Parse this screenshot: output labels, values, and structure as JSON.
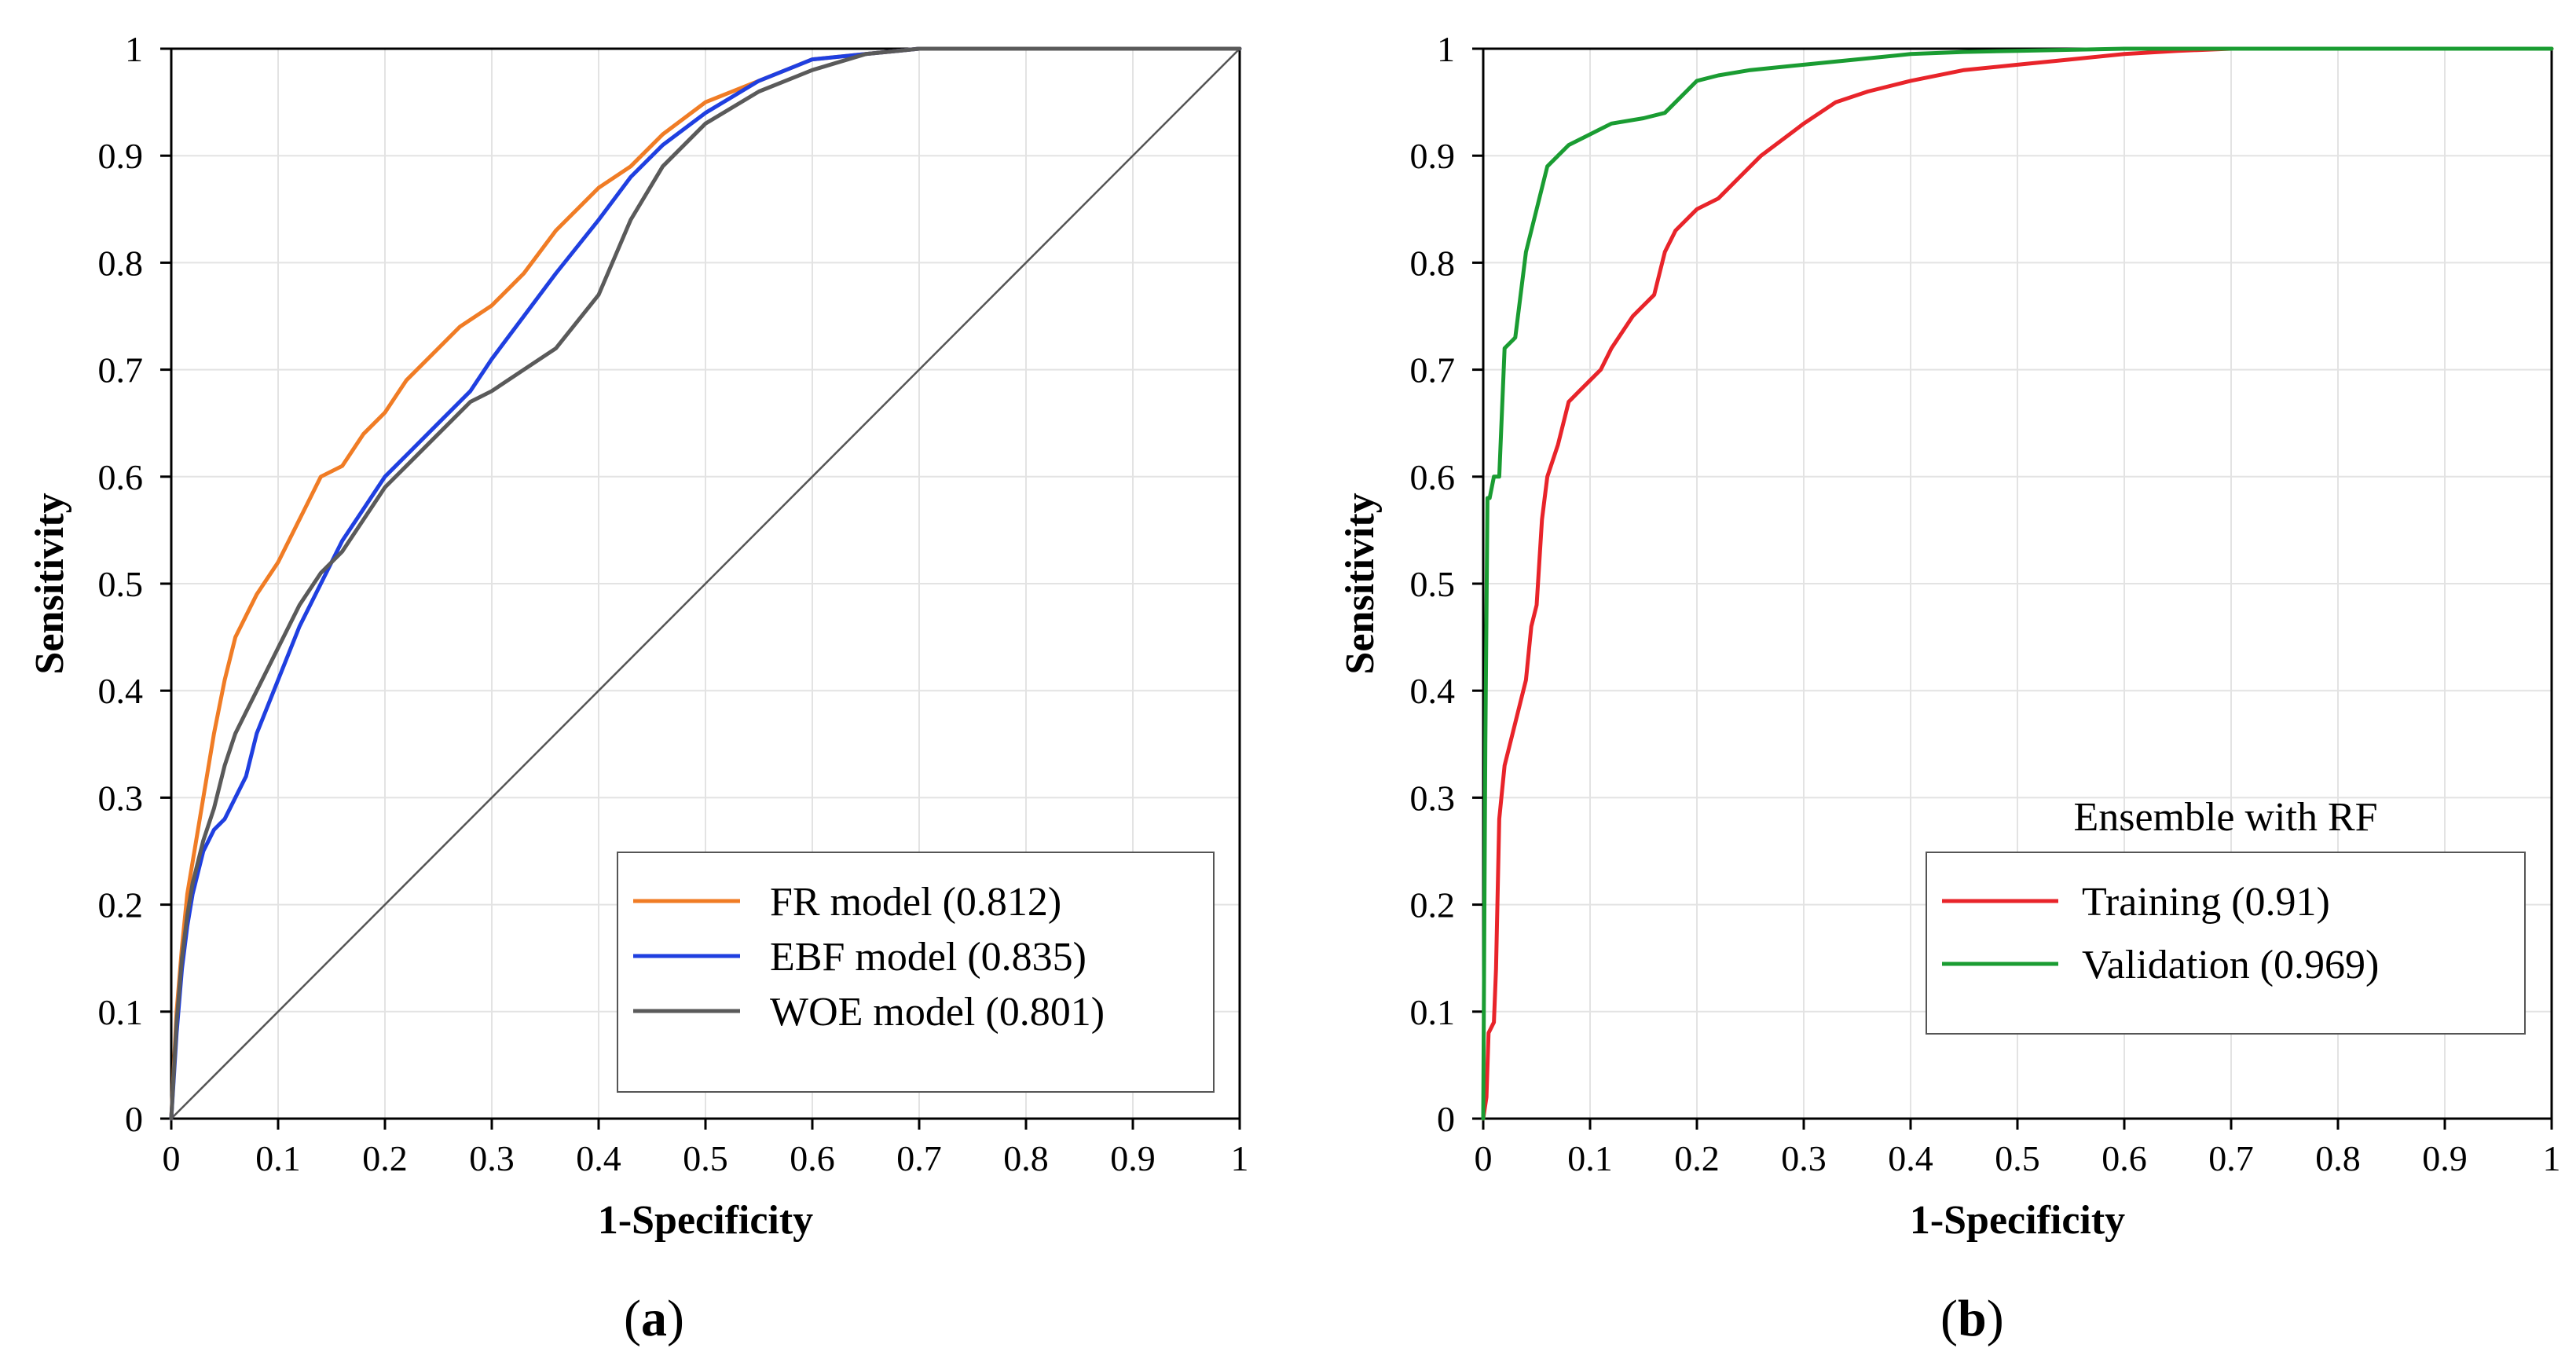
{
  "chart_data": [
    {
      "panel": "a",
      "type": "line",
      "xlabel": "1-Specificity",
      "ylabel": "Sensitivity",
      "xlim": [
        0,
        1
      ],
      "ylim": [
        0,
        1
      ],
      "ticks": [
        "0",
        "0.1",
        "0.2",
        "0.3",
        "0.4",
        "0.5",
        "0.6",
        "0.7",
        "0.8",
        "0.9",
        "1"
      ],
      "grid": true,
      "legend_position": "bottom-right",
      "diagonal": true,
      "series": [
        {
          "name": "FR model (0.812)",
          "color": "#f07c25",
          "x": [
            0,
            0.005,
            0.01,
            0.015,
            0.02,
            0.03,
            0.04,
            0.05,
            0.06,
            0.07,
            0.08,
            0.1,
            0.12,
            0.14,
            0.16,
            0.18,
            0.2,
            0.22,
            0.25,
            0.27,
            0.3,
            0.33,
            0.36,
            0.4,
            0.43,
            0.46,
            0.5,
            0.55,
            0.6,
            0.65,
            0.7,
            0.8,
            1
          ],
          "y": [
            0,
            0.1,
            0.16,
            0.21,
            0.24,
            0.3,
            0.36,
            0.41,
            0.45,
            0.47,
            0.49,
            0.52,
            0.56,
            0.6,
            0.61,
            0.64,
            0.66,
            0.69,
            0.72,
            0.74,
            0.76,
            0.79,
            0.83,
            0.87,
            0.89,
            0.92,
            0.95,
            0.97,
            0.99,
            0.995,
            1,
            1,
            1
          ]
        },
        {
          "name": "EBF model (0.835)",
          "color": "#1f3fe0",
          "x": [
            0,
            0.005,
            0.01,
            0.015,
            0.02,
            0.03,
            0.04,
            0.05,
            0.06,
            0.07,
            0.08,
            0.1,
            0.12,
            0.14,
            0.16,
            0.18,
            0.2,
            0.22,
            0.25,
            0.28,
            0.3,
            0.33,
            0.36,
            0.4,
            0.43,
            0.46,
            0.5,
            0.55,
            0.6,
            0.65,
            0.7,
            0.8,
            1
          ],
          "y": [
            0,
            0.08,
            0.14,
            0.18,
            0.21,
            0.25,
            0.27,
            0.28,
            0.3,
            0.32,
            0.36,
            0.41,
            0.46,
            0.5,
            0.54,
            0.57,
            0.6,
            0.62,
            0.65,
            0.68,
            0.71,
            0.75,
            0.79,
            0.84,
            0.88,
            0.91,
            0.94,
            0.97,
            0.99,
            0.995,
            1,
            1,
            1
          ]
        },
        {
          "name": "WOE model (0.801)",
          "color": "#5a5a5a",
          "x": [
            0,
            0.005,
            0.01,
            0.015,
            0.02,
            0.03,
            0.04,
            0.05,
            0.06,
            0.07,
            0.08,
            0.1,
            0.12,
            0.14,
            0.16,
            0.18,
            0.2,
            0.22,
            0.25,
            0.28,
            0.3,
            0.33,
            0.36,
            0.4,
            0.43,
            0.46,
            0.5,
            0.55,
            0.6,
            0.65,
            0.7,
            0.8,
            1
          ],
          "y": [
            0,
            0.09,
            0.15,
            0.19,
            0.22,
            0.26,
            0.29,
            0.33,
            0.36,
            0.38,
            0.4,
            0.44,
            0.48,
            0.51,
            0.53,
            0.56,
            0.59,
            0.61,
            0.64,
            0.67,
            0.68,
            0.7,
            0.72,
            0.77,
            0.84,
            0.89,
            0.93,
            0.96,
            0.98,
            0.995,
            1,
            1,
            1
          ]
        }
      ]
    },
    {
      "panel": "b",
      "type": "line",
      "xlabel": "1-Specificity",
      "ylabel": "Sensitivity",
      "xlim": [
        0,
        1
      ],
      "ylim": [
        0,
        1
      ],
      "ticks": [
        "0",
        "0.1",
        "0.2",
        "0.3",
        "0.4",
        "0.5",
        "0.6",
        "0.7",
        "0.8",
        "0.9",
        "1"
      ],
      "grid": true,
      "legend_position": "bottom-right",
      "legend_title": "Ensemble with RF",
      "diagonal": false,
      "series": [
        {
          "name": "Training (0.91)",
          "color": "#e8242a",
          "x": [
            0,
            0.003,
            0.005,
            0.01,
            0.012,
            0.015,
            0.02,
            0.025,
            0.03,
            0.04,
            0.045,
            0.05,
            0.055,
            0.06,
            0.07,
            0.08,
            0.09,
            0.1,
            0.11,
            0.12,
            0.14,
            0.15,
            0.16,
            0.17,
            0.18,
            0.19,
            0.2,
            0.22,
            0.24,
            0.26,
            0.3,
            0.33,
            0.36,
            0.4,
            0.45,
            0.5,
            0.55,
            0.6,
            0.65,
            0.7,
            0.8,
            0.9,
            1
          ],
          "y": [
            0,
            0.02,
            0.08,
            0.09,
            0.14,
            0.28,
            0.33,
            0.35,
            0.37,
            0.41,
            0.46,
            0.48,
            0.56,
            0.6,
            0.63,
            0.67,
            0.68,
            0.69,
            0.7,
            0.72,
            0.75,
            0.76,
            0.77,
            0.81,
            0.83,
            0.84,
            0.85,
            0.86,
            0.88,
            0.9,
            0.93,
            0.95,
            0.96,
            0.97,
            0.98,
            0.985,
            0.99,
            0.995,
            0.998,
            1,
            1,
            1,
            1
          ]
        },
        {
          "name": "Validation (0.969)",
          "color": "#1a9c32",
          "x": [
            0,
            0.002,
            0.004,
            0.006,
            0.01,
            0.015,
            0.02,
            0.03,
            0.04,
            0.05,
            0.06,
            0.07,
            0.08,
            0.1,
            0.12,
            0.15,
            0.17,
            0.19,
            0.2,
            0.22,
            0.25,
            0.3,
            0.35,
            0.4,
            0.45,
            0.5,
            0.55,
            0.6,
            0.7,
            0.8,
            0.9,
            1
          ],
          "y": [
            0,
            0.35,
            0.58,
            0.58,
            0.6,
            0.6,
            0.72,
            0.73,
            0.81,
            0.85,
            0.89,
            0.9,
            0.91,
            0.92,
            0.93,
            0.935,
            0.94,
            0.96,
            0.97,
            0.975,
            0.98,
            0.985,
            0.99,
            0.995,
            0.997,
            0.998,
            0.999,
            1,
            1,
            1,
            1,
            1
          ]
        }
      ]
    }
  ],
  "panel_labels": [
    "(a)",
    "(b)"
  ],
  "panel_letters": [
    "a",
    "b"
  ]
}
